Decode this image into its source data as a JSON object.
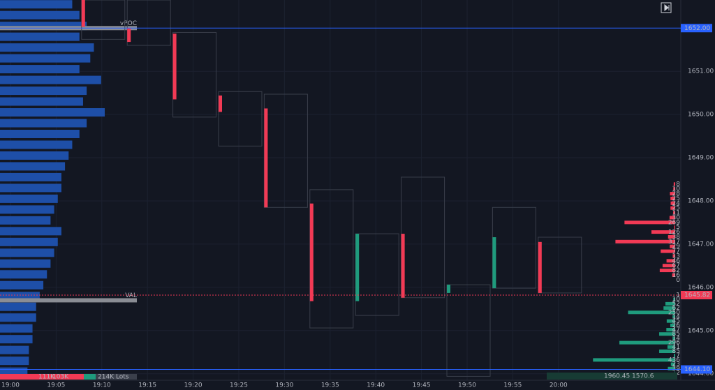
{
  "chart_data": {
    "type": "footprint",
    "categories": [
      "19:00",
      "19:05",
      "19:10",
      "19:15",
      "19:20",
      "19:25",
      "19:30",
      "19:35",
      "19:40",
      "19:45",
      "19:50",
      "19:55",
      "20:00"
    ],
    "ylim": [
      1643.85,
      1652.65
    ],
    "yticks": [
      1644,
      1645,
      1646,
      1647,
      1648,
      1649,
      1650,
      1651
    ],
    "yticks_labels": [
      "1644.00",
      "1645.00",
      "1646.00",
      "1647.00",
      "1648.00",
      "1649.00",
      "1650.00",
      "1651.00"
    ],
    "up_color": "#1f9b7d",
    "down_color": "#f23a55",
    "candles": [
      {
        "open": 1652.65,
        "high": 1652.65,
        "low": 1651.74,
        "close": 1652.03
      },
      {
        "open": 1652.0,
        "high": 1652.65,
        "low": 1651.6,
        "close": 1651.68
      },
      {
        "open": 1651.87,
        "high": 1651.9,
        "low": 1649.94,
        "close": 1650.35
      },
      {
        "open": 1650.44,
        "high": 1650.53,
        "low": 1649.27,
        "close": 1650.06
      },
      {
        "open": 1650.14,
        "high": 1650.47,
        "low": 1647.85,
        "close": 1647.85
      },
      {
        "open": 1647.94,
        "high": 1648.26,
        "low": 1645.06,
        "close": 1645.68
      },
      {
        "open": 1645.68,
        "high": 1647.24,
        "low": 1645.35,
        "close": 1647.24
      },
      {
        "open": 1647.24,
        "high": 1648.55,
        "low": 1645.76,
        "close": 1645.76
      },
      {
        "open": 1645.87,
        "high": 1646.06,
        "low": 1643.94,
        "close": 1646.06
      },
      {
        "open": 1645.98,
        "high": 1647.85,
        "low": 1645.98,
        "close": 1647.16
      },
      {
        "open": 1647.05,
        "high": 1647.16,
        "low": 1645.87,
        "close": 1645.87
      }
    ],
    "volume_profile": {
      "color": "#1e4fa8",
      "top": 1652.55,
      "step": 0.25,
      "values": [
        100,
        110,
        120,
        110,
        130,
        125,
        110,
        140,
        120,
        115,
        145,
        120,
        110,
        100,
        95,
        90,
        85,
        85,
        80,
        75,
        70,
        85,
        80,
        75,
        70,
        65,
        60,
        55,
        50,
        50,
        45,
        45,
        40,
        40,
        38
      ]
    },
    "delta_profile": {
      "above": {
        "top": 1648.39,
        "step": 0.111,
        "color": "#f23a55",
        "values": [
          8,
          10,
          28,
          25,
          24,
          25,
          11,
          30,
          269,
          5,
          126,
          38,
          317,
          29,
          77,
          13,
          46,
          67,
          82,
          16,
          0
        ]
      },
      "below": {
        "top": 1645.82,
        "step": 0.1,
        "color": "#1f9b7d",
        "values": [
          1,
          10,
          52,
          62,
          250,
          14,
          45,
          26,
          47,
          85,
          14,
          296,
          41,
          85,
          7,
          436,
          23,
          39,
          2
        ]
      }
    },
    "levels": [
      {
        "value": 1652.0,
        "label": "vPOC"
      },
      {
        "value": 1645.7,
        "label": "VAL"
      }
    ],
    "markers": [
      {
        "value": 1652.0,
        "label": "1652.00",
        "color": "#2962ff"
      },
      {
        "value": 1645.82,
        "label": "1645.82",
        "color": "#f23a55"
      },
      {
        "value": 1644.1,
        "label": "1644.10",
        "color": "#2962ff"
      }
    ],
    "footer": [
      "111K",
      "103K",
      "214K Lots"
    ],
    "footer_right": [
      "1960.45",
      "1570.6"
    ]
  }
}
